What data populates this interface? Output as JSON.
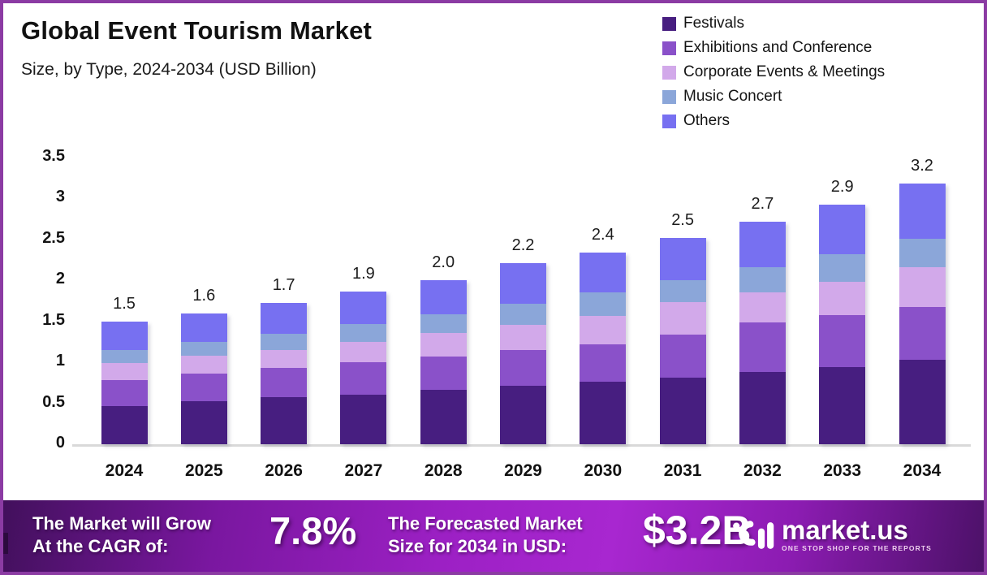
{
  "header": {
    "title": "Global Event Tourism Market",
    "subtitle": "Size, by Type, 2024-2034 (USD Billion)"
  },
  "legend": {
    "items": [
      {
        "label": "Festivals",
        "color": "#471e80"
      },
      {
        "label": "Exhibitions and Conference",
        "color": "#8a51c9"
      },
      {
        "label": "Corporate Events & Meetings",
        "color": "#d2a9ea"
      },
      {
        "label": "Music Concert",
        "color": "#8ba6d9"
      },
      {
        "label": "Others",
        "color": "#7770f1"
      }
    ]
  },
  "chart_data": {
    "type": "bar",
    "stacked": true,
    "title": "Global Event Tourism Market",
    "subtitle": "Size, by Type, 2024-2034 (USD Billion)",
    "categories": [
      "2024",
      "2025",
      "2026",
      "2027",
      "2028",
      "2029",
      "2030",
      "2031",
      "2032",
      "2033",
      "2034"
    ],
    "series": [
      {
        "name": "Festivals",
        "color": "#471e80",
        "values": [
          0.47,
          0.53,
          0.57,
          0.6,
          0.66,
          0.71,
          0.76,
          0.81,
          0.88,
          0.94,
          1.03
        ]
      },
      {
        "name": "Exhibitions and Conference",
        "color": "#8a51c9",
        "values": [
          0.31,
          0.33,
          0.36,
          0.4,
          0.41,
          0.44,
          0.46,
          0.53,
          0.61,
          0.64,
          0.65
        ]
      },
      {
        "name": "Corporate Events & Meetings",
        "color": "#d2a9ea",
        "values": [
          0.21,
          0.22,
          0.22,
          0.25,
          0.29,
          0.31,
          0.35,
          0.39,
          0.36,
          0.4,
          0.48
        ]
      },
      {
        "name": "Music Concert",
        "color": "#8ba6d9",
        "values": [
          0.16,
          0.17,
          0.2,
          0.22,
          0.23,
          0.26,
          0.28,
          0.27,
          0.31,
          0.34,
          0.35
        ]
      },
      {
        "name": "Others",
        "color": "#7770f1",
        "values": [
          0.35,
          0.35,
          0.38,
          0.39,
          0.41,
          0.49,
          0.49,
          0.52,
          0.56,
          0.6,
          0.67
        ]
      }
    ],
    "total_labels": [
      "1.5",
      "1.6",
      "1.7",
      "1.9",
      "2.0",
      "2.2",
      "2.4",
      "2.5",
      "2.7",
      "2.9",
      "3.2"
    ],
    "xlabel": "",
    "ylabel": "",
    "yticks": [
      0,
      0.5,
      1,
      1.5,
      2,
      2.5,
      3,
      3.5
    ],
    "ylim": [
      0,
      3.5
    ],
    "grid": false,
    "legend_position": "top-right"
  },
  "footer": {
    "cagr_line1": "The Market will Grow",
    "cagr_line2": "At the CAGR of:",
    "cagr_value": "7.8%",
    "forecast_line1": "The Forecasted Market",
    "forecast_line2": "Size for 2034 in USD:",
    "forecast_value": "$3.2B",
    "brand": {
      "name": "market.us",
      "tagline": "ONE STOP SHOP FOR THE REPORTS"
    }
  },
  "colors": {
    "page_border": "#8b3ba3",
    "axis_line": "#d9d9d9",
    "banner_dark": "#42105c",
    "banner_bright": "#a827d0",
    "text": "#141414"
  }
}
